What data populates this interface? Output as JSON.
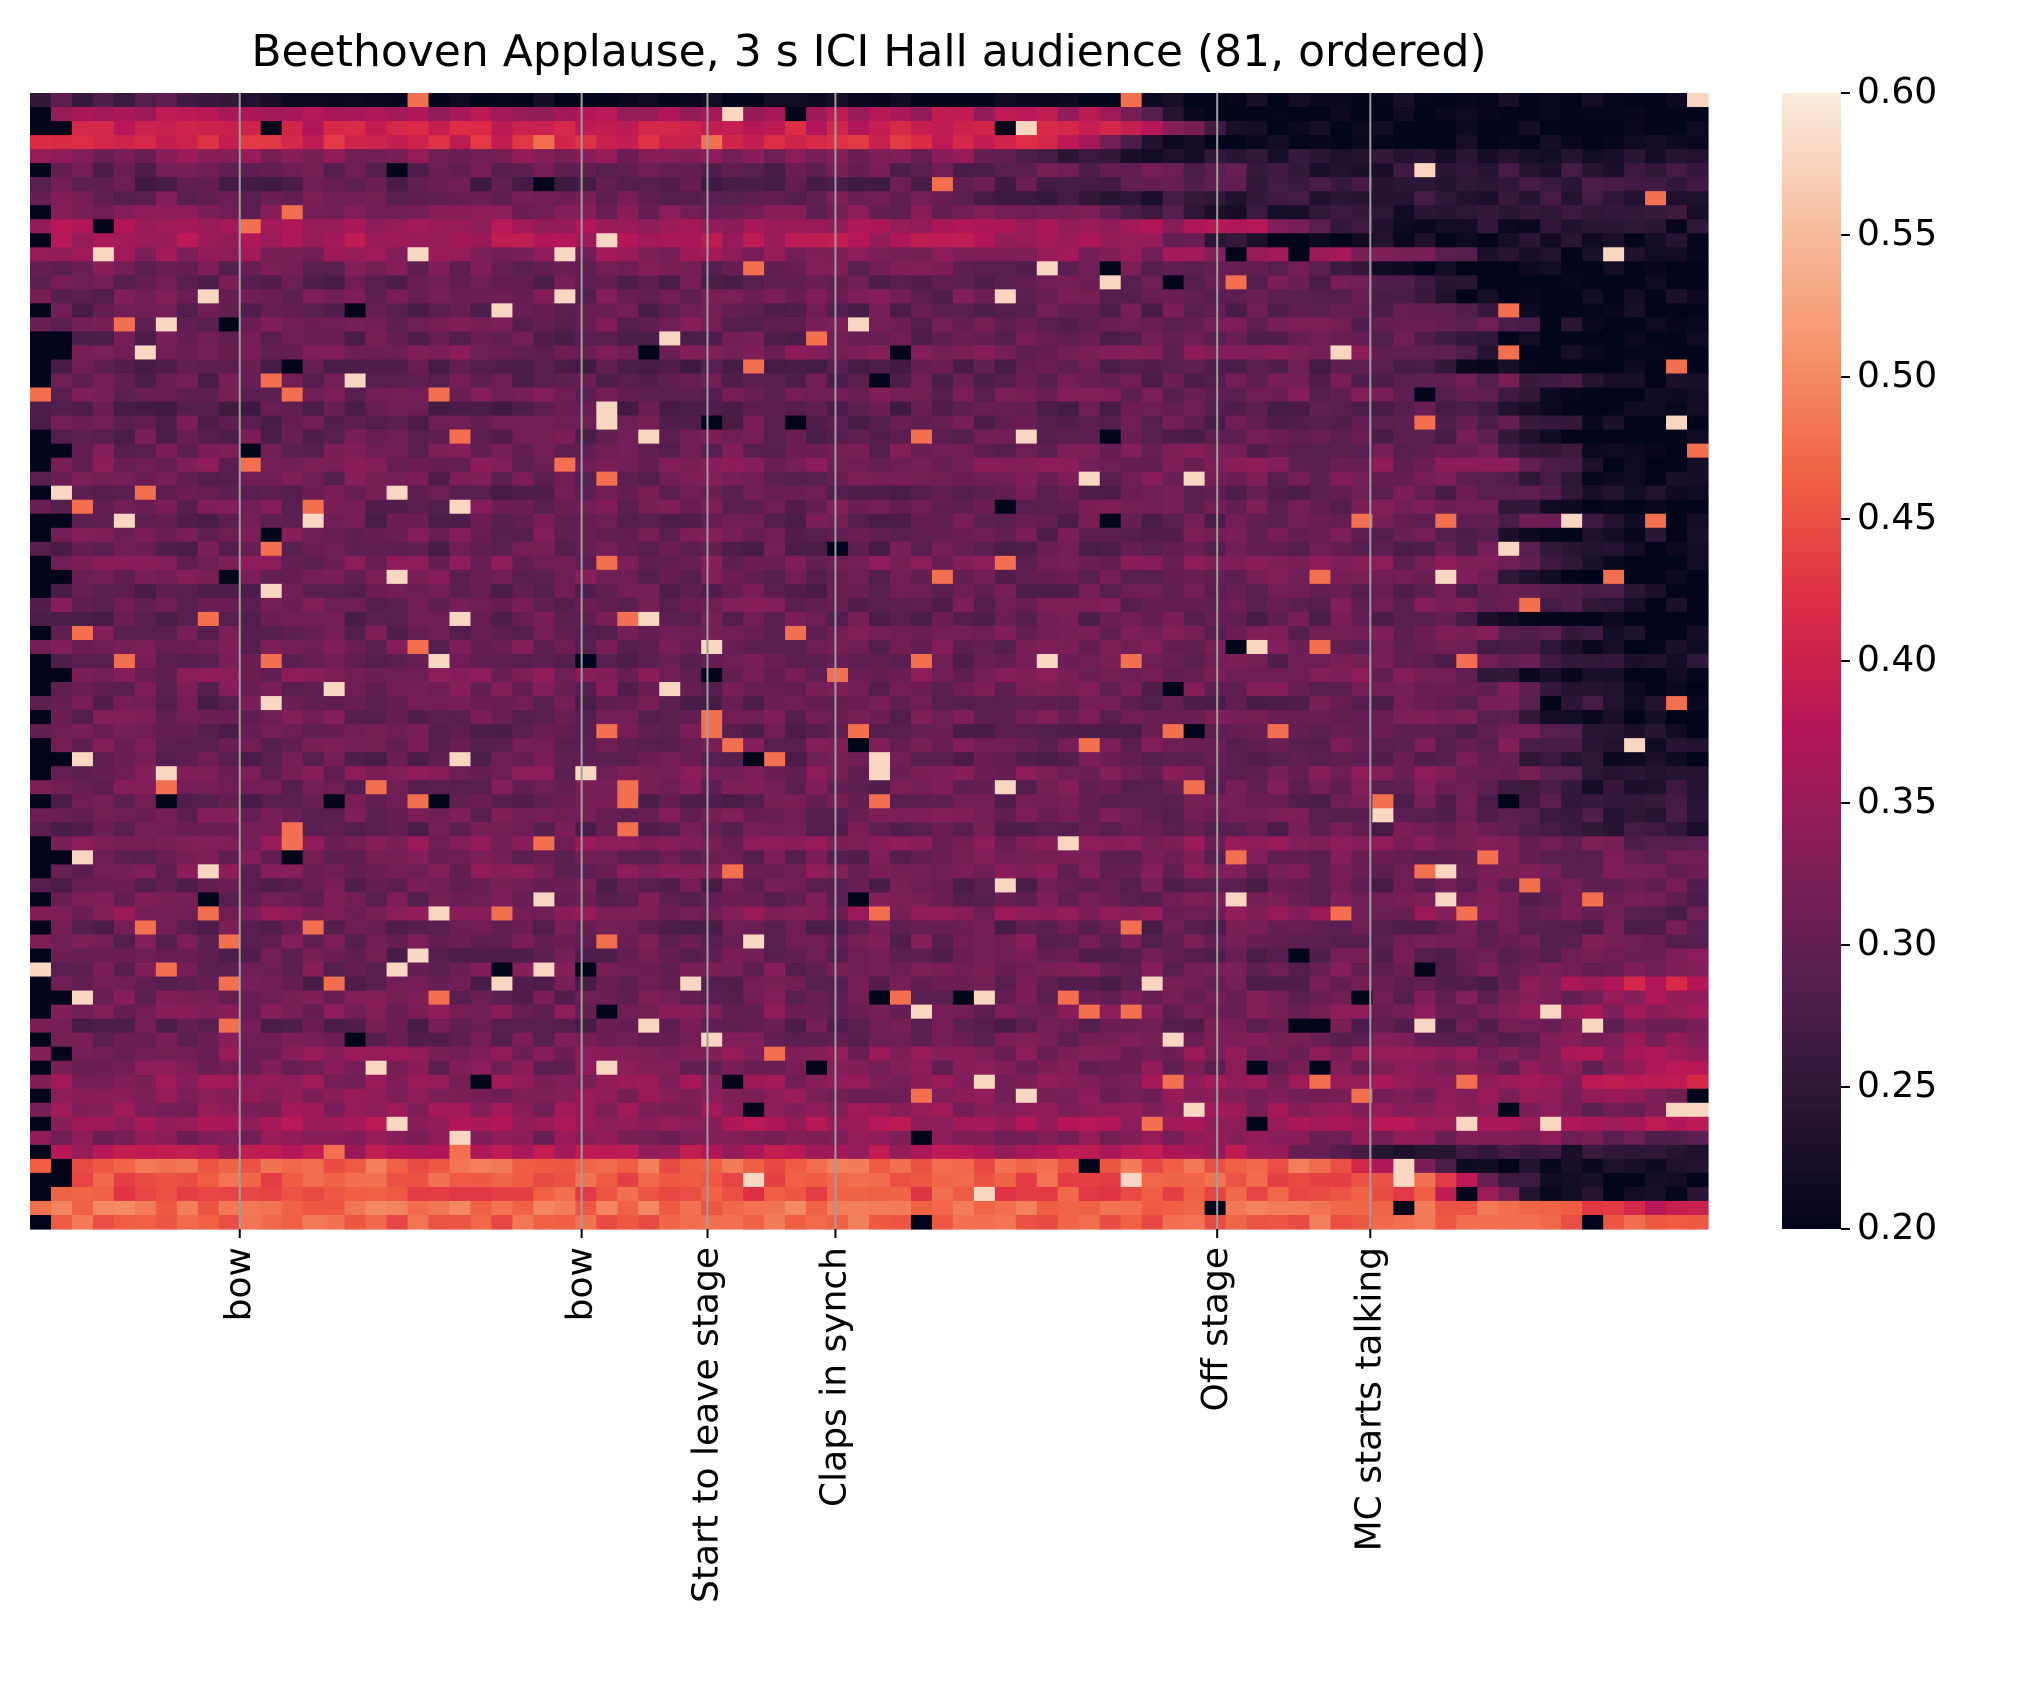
{
  "chart_data": {
    "type": "heatmap",
    "title": "Beethoven Applause, 3 s ICI Hall audience (81, ordered)",
    "xlabel": "",
    "ylabel": "",
    "n_rows": 81,
    "n_cols": 80,
    "colorbar": {
      "range": [
        0.2,
        0.6
      ],
      "ticks": [
        "0.20",
        "0.25",
        "0.30",
        "0.35",
        "0.40",
        "0.45",
        "0.50",
        "0.55",
        "0.60"
      ],
      "colormap": "rocket",
      "colors": [
        "#03051a",
        "#2a1636",
        "#551e4f",
        "#841e5a",
        "#b41658",
        "#dd2c45",
        "#f06043",
        "#f5926a",
        "#f6bc9e",
        "#faebdd"
      ]
    },
    "events": [
      {
        "label": "bow",
        "col": 10
      },
      {
        "label": "bow",
        "col": 26.3
      },
      {
        "label": "Start to leave stage",
        "col": 32.3
      },
      {
        "label": "Claps in synch",
        "col": 38.4
      },
      {
        "label": "Off stage",
        "col": 56.6
      },
      {
        "label": "MC starts talking",
        "col": 63.9
      }
    ],
    "row_end_cols": [
      80,
      80,
      80,
      80,
      80,
      80,
      80,
      80,
      80,
      80,
      80,
      80,
      80,
      80,
      80,
      80,
      80,
      80,
      80,
      80,
      80,
      80,
      80,
      80,
      80,
      80,
      80,
      80,
      80,
      80,
      80,
      80,
      80,
      80,
      80,
      80,
      80,
      80,
      80,
      80,
      80,
      80,
      80,
      80,
      80,
      80,
      80,
      80,
      80,
      80,
      80,
      80,
      80,
      80,
      80,
      80,
      80,
      80,
      80,
      80,
      80,
      80,
      80,
      80,
      80,
      80,
      80,
      80,
      80,
      80,
      80,
      80,
      80,
      80,
      80,
      80,
      80,
      80,
      80,
      80,
      80
    ],
    "row_dark_head_cols": [
      0,
      1,
      2,
      0,
      0,
      1,
      0,
      0,
      1,
      0,
      1,
      0,
      0,
      0,
      0,
      1,
      0,
      1,
      2,
      1,
      1,
      0,
      0,
      0,
      1,
      2,
      1,
      0,
      1,
      0,
      2,
      1,
      0,
      1,
      2,
      1,
      0,
      0,
      1,
      0,
      1,
      2,
      1,
      0,
      1,
      0,
      1,
      2,
      1,
      0,
      1,
      0,
      0,
      1,
      2,
      1,
      0,
      1,
      0,
      1,
      0,
      1,
      0,
      1,
      2,
      1,
      0,
      1,
      0,
      1,
      0,
      1,
      0,
      1,
      0,
      1,
      0,
      2,
      1,
      0,
      1
    ],
    "row_base_values": [
      0.28,
      0.37,
      0.4,
      0.41,
      0.33,
      0.3,
      0.29,
      0.31,
      0.32,
      0.36,
      0.37,
      0.34,
      0.31,
      0.3,
      0.31,
      0.3,
      0.31,
      0.3,
      0.32,
      0.29,
      0.3,
      0.31,
      0.29,
      0.3,
      0.3,
      0.31,
      0.32,
      0.31,
      0.3,
      0.31,
      0.3,
      0.31,
      0.3,
      0.32,
      0.31,
      0.3,
      0.31,
      0.3,
      0.31,
      0.31,
      0.3,
      0.32,
      0.31,
      0.3,
      0.31,
      0.3,
      0.31,
      0.3,
      0.32,
      0.31,
      0.3,
      0.31,
      0.3,
      0.33,
      0.31,
      0.32,
      0.3,
      0.31,
      0.33,
      0.3,
      0.31,
      0.3,
      0.31,
      0.3,
      0.31,
      0.32,
      0.3,
      0.31,
      0.33,
      0.32,
      0.34,
      0.33,
      0.34,
      0.36,
      0.33,
      0.37,
      0.47,
      0.46,
      0.45,
      0.48,
      0.47
    ],
    "row_end_values": [
      0.2,
      0.2,
      0.2,
      0.2,
      0.24,
      0.25,
      0.26,
      0.25,
      0.24,
      0.23,
      0.22,
      0.21,
      0.2,
      0.2,
      0.21,
      0.2,
      0.21,
      0.2,
      0.2,
      0.2,
      0.21,
      0.2,
      0.2,
      0.2,
      0.2,
      0.21,
      0.2,
      0.22,
      0.21,
      0.2,
      0.21,
      0.22,
      0.2,
      0.21,
      0.2,
      0.22,
      0.21,
      0.2,
      0.21,
      0.22,
      0.23,
      0.21,
      0.2,
      0.22,
      0.21,
      0.2,
      0.22,
      0.21,
      0.23,
      0.24,
      0.25,
      0.26,
      0.25,
      0.29,
      0.31,
      0.3,
      0.31,
      0.3,
      0.29,
      0.3,
      0.31,
      0.32,
      0.33,
      0.4,
      0.37,
      0.35,
      0.32,
      0.34,
      0.36,
      0.38,
      0.4,
      0.33,
      0.32,
      0.37,
      0.3,
      0.25,
      0.22,
      0.2,
      0.22,
      0.4,
      0.45
    ],
    "row_fade_start_cols": [
      8,
      50,
      52,
      48,
      44,
      55,
      55,
      42,
      50,
      58,
      52,
      65,
      60,
      64,
      62,
      66,
      68,
      65,
      66,
      64,
      70,
      68,
      66,
      70,
      68,
      69,
      70,
      68,
      70,
      68,
      72,
      66,
      70,
      70,
      68,
      72,
      70,
      66,
      70,
      68,
      70,
      66,
      70,
      70,
      68,
      72,
      70,
      69,
      70,
      68,
      70,
      66,
      70,
      70,
      68,
      72,
      70,
      66,
      70,
      68,
      70,
      72,
      74,
      70,
      72,
      68,
      70,
      72,
      70,
      74,
      72,
      70,
      68,
      66,
      70,
      58,
      62,
      66,
      66,
      70,
      72
    ]
  }
}
